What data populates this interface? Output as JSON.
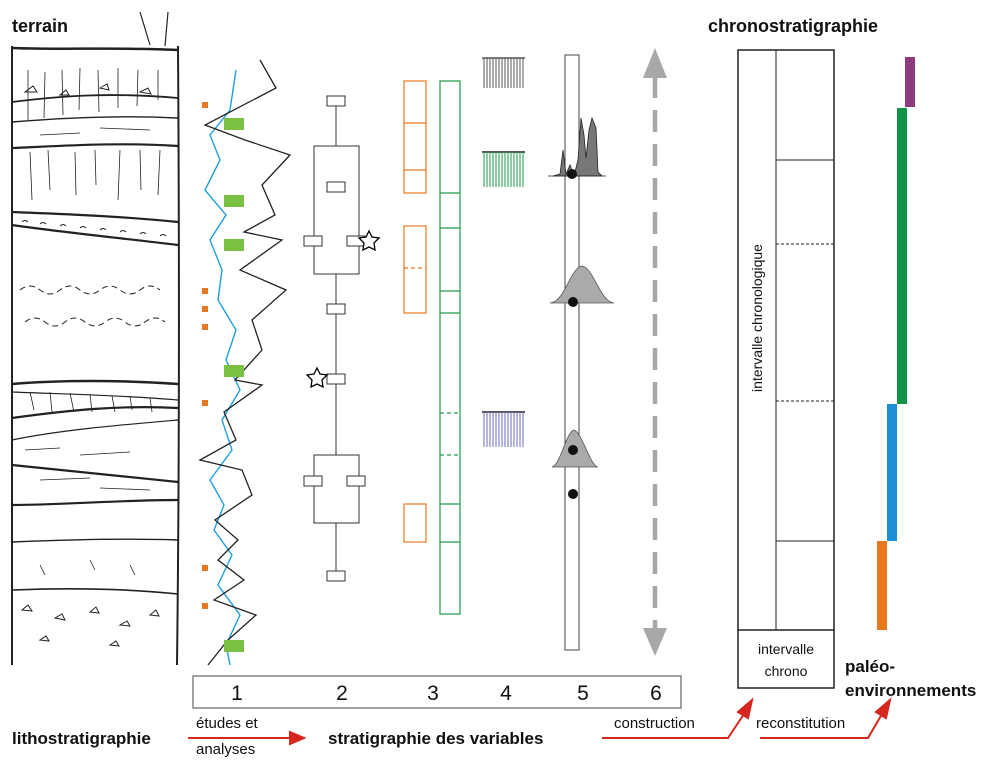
{
  "headers": {
    "terrain": "terrain",
    "chronostratigraphie": "chronostratigraphie",
    "lithostratigraphie": "lithostratigraphie",
    "stratigraphie_variables": "stratigraphie des variables",
    "paleo_line1": "paléo-",
    "paleo_line2": "environnements"
  },
  "columns": [
    "1",
    "2",
    "3",
    "4",
    "5",
    "6"
  ],
  "arrows": {
    "etudes_line1": "études et",
    "etudes_line2": "analyses",
    "construction": "construction",
    "reconstitution": "reconstitution"
  },
  "chrono_box": {
    "vertical_label": "intervalle chronologique",
    "bottom_line1": "intervalle",
    "bottom_line2": "chrono"
  },
  "colors": {
    "orange": "#e87722",
    "green_box": "#1e9a4a",
    "green_fill": "#7ac143",
    "blue_line": "#1fa0dc",
    "purple": "#8e3a7e",
    "env_green": "#119447",
    "env_blue": "#1c8fd6",
    "env_orange": "#e8781e",
    "arrow_red": "#d7261e",
    "gray": "#a8a8a8"
  }
}
